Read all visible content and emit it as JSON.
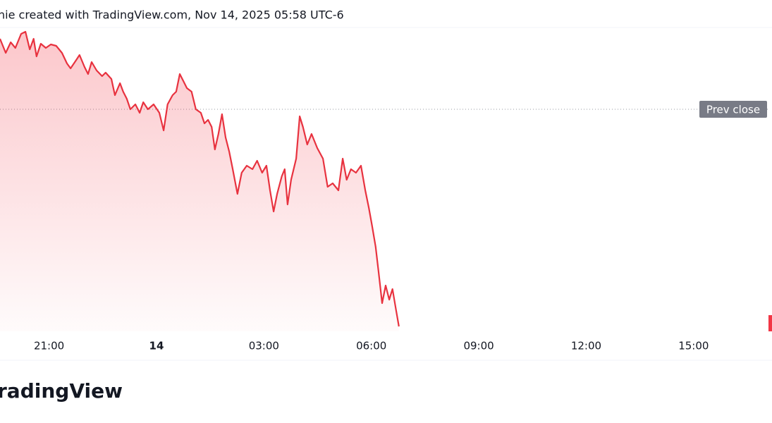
{
  "chart_data": {
    "type": "line",
    "title": "nie created with TradingView.com, Nov 14, 2025 05:58 UTC-6",
    "brand": "radingView",
    "color": "#e8323f",
    "x": [
      -4.37,
      -4.21,
      -4.07,
      -3.94,
      -3.78,
      -3.66,
      -3.54,
      -3.43,
      -3.35,
      -3.23,
      -3.09,
      -2.95,
      -2.8,
      -2.64,
      -2.5,
      -2.4,
      -2.24,
      -2.15,
      -2.01,
      -1.91,
      -1.81,
      -1.67,
      -1.52,
      -1.42,
      -1.26,
      -1.16,
      -1.02,
      -0.93,
      -0.83,
      -0.73,
      -0.59,
      -0.47,
      -0.37,
      -0.24,
      -0.08,
      0.08,
      0.2,
      0.31,
      0.45,
      0.55,
      0.65,
      0.75,
      0.85,
      0.98,
      1.1,
      1.24,
      1.34,
      1.44,
      1.54,
      1.63,
      1.73,
      1.83,
      1.93,
      2.03,
      2.13,
      2.26,
      2.38,
      2.52,
      2.68,
      2.81,
      2.95,
      3.07,
      3.17,
      3.27,
      3.37,
      3.5,
      3.58,
      3.66,
      3.76,
      3.9,
      4.0,
      4.09,
      4.21,
      4.33,
      4.49,
      4.65,
      4.78,
      4.92,
      5.08,
      5.2,
      5.31,
      5.43,
      5.57,
      5.71,
      5.83,
      5.93,
      6.02,
      6.12,
      6.2,
      6.3,
      6.4,
      6.5,
      6.59,
      6.69,
      6.77
    ],
    "values": [
      415,
      395,
      410,
      402,
      422,
      425,
      400,
      415,
      390,
      408,
      402,
      407,
      405,
      395,
      380,
      373,
      385,
      392,
      375,
      365,
      382,
      370,
      362,
      367,
      358,
      335,
      352,
      340,
      330,
      315,
      322,
      310,
      325,
      315,
      322,
      310,
      285,
      322,
      335,
      340,
      365,
      355,
      345,
      340,
      315,
      310,
      295,
      300,
      290,
      258,
      280,
      308,
      275,
      255,
      230,
      195,
      225,
      235,
      230,
      242,
      225,
      235,
      200,
      170,
      195,
      220,
      230,
      180,
      215,
      245,
      305,
      290,
      265,
      280,
      260,
      245,
      205,
      210,
      200,
      245,
      215,
      230,
      225,
      235,
      200,
      175,
      150,
      120,
      85,
      40,
      65,
      45,
      60,
      30,
      7
    ],
    "prev_close": {
      "value": 315,
      "label": "Prev close"
    },
    "xlim": [
      -4.37,
      17.09
    ],
    "ylim": [
      0,
      430
    ],
    "xticks": [
      {
        "value": -3,
        "label": "21:00"
      },
      {
        "value": 0,
        "label": "14"
      },
      {
        "value": 3,
        "label": "03:00"
      },
      {
        "value": 6,
        "label": "06:00"
      },
      {
        "value": 9,
        "label": "09:00"
      },
      {
        "value": 12,
        "label": "12:00"
      },
      {
        "value": 15,
        "label": "15:00"
      }
    ],
    "bold_tick": 1
  }
}
